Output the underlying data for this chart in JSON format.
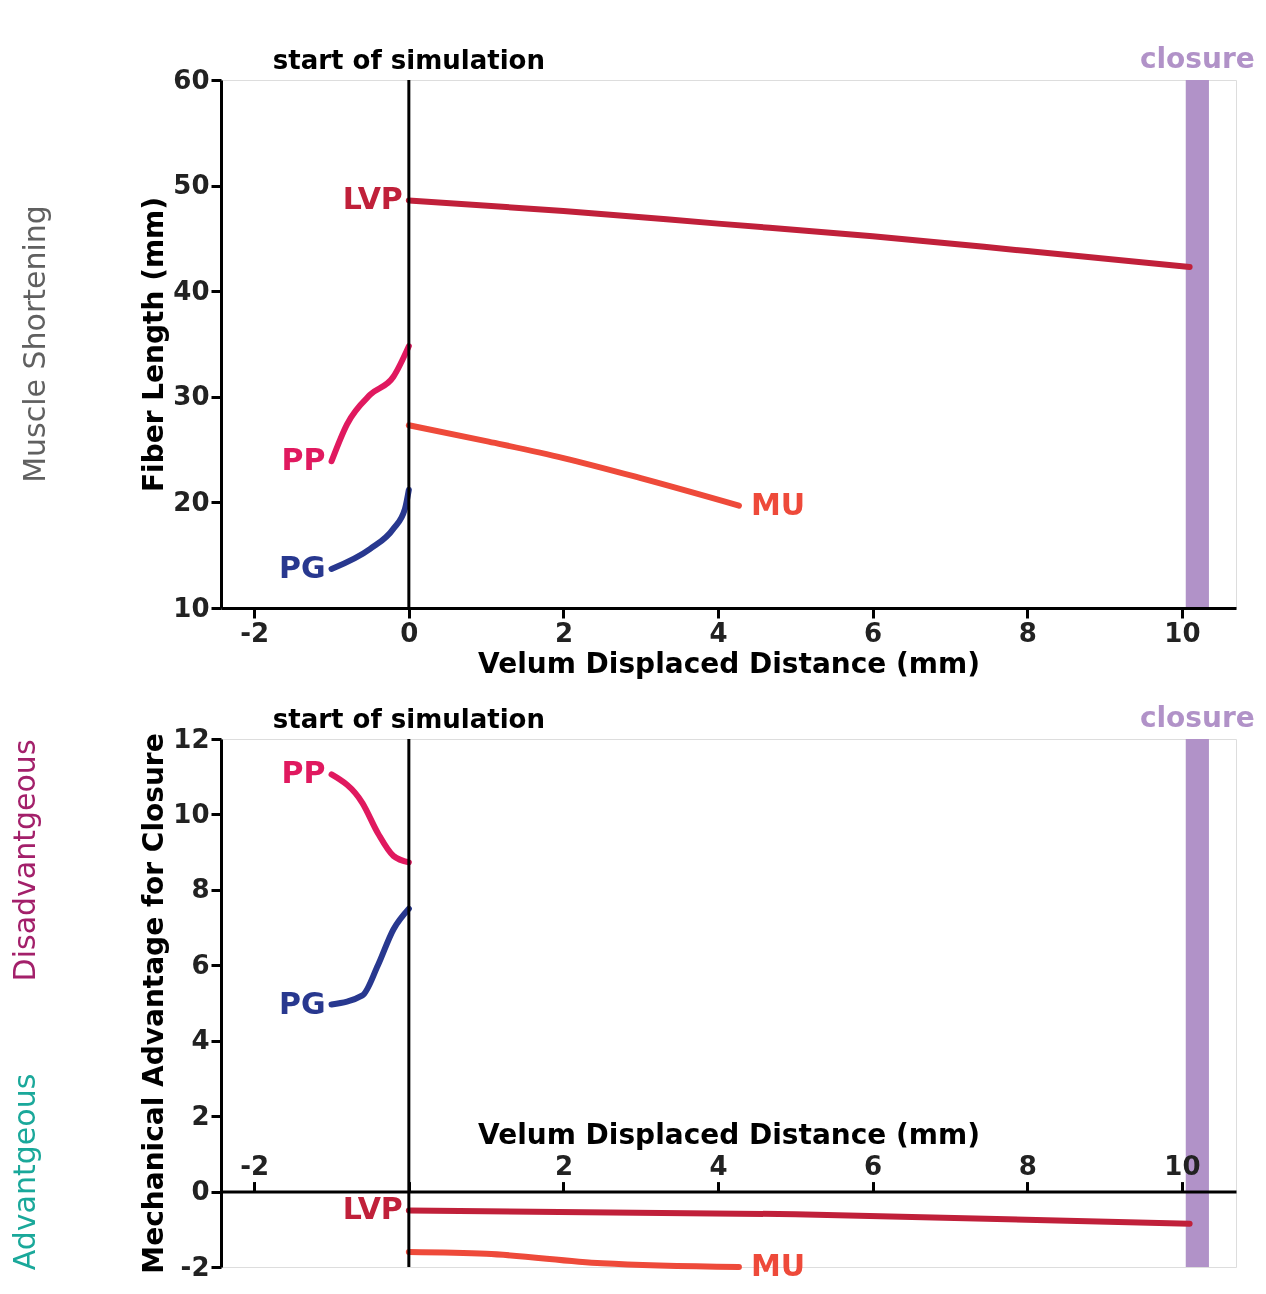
{
  "chart_data": [
    {
      "type": "line",
      "xlabel": "Velum Displaced Distance (mm)",
      "ylabel": "Fiber Length (mm)",
      "xlim": [
        -2.43,
        10.7
      ],
      "ylim": [
        10,
        60
      ],
      "xticks": [
        -2,
        0,
        2,
        4,
        6,
        8,
        10
      ],
      "yticks": [
        10,
        20,
        30,
        40,
        50,
        60
      ],
      "grid": false,
      "legend": false,
      "series": [
        {
          "name": "LVP",
          "color": "#c0203a",
          "x": [
            0,
            2,
            4,
            6,
            8,
            10.1
          ],
          "values": [
            48.6,
            47.6,
            46.4,
            45.2,
            43.8,
            42.3
          ]
        },
        {
          "name": "MU",
          "color": "#ee4a3a",
          "x": [
            0,
            1,
            2,
            3,
            4.27
          ],
          "values": [
            27.3,
            25.8,
            24.2,
            22.3,
            19.7
          ]
        },
        {
          "name": "PP",
          "color": "#e0195f",
          "x": [
            -1,
            -0.8,
            -0.5,
            -0.2,
            0
          ],
          "values": [
            23.9,
            27.4,
            30.2,
            31.9,
            34.8
          ]
        },
        {
          "name": "PG",
          "color": "#28388f",
          "x": [
            -1,
            -0.5,
            -0.2,
            -0.05,
            0
          ],
          "values": [
            13.7,
            15.6,
            17.5,
            19.4,
            21.2
          ]
        }
      ],
      "ref_lines": [
        {
          "axis": "x",
          "value": 0,
          "label": "start of simulation",
          "color": "#000000"
        }
      ],
      "bands": [
        {
          "axis": "x",
          "from": 10.05,
          "to": 10.35,
          "label": "closure",
          "color": "#b192c8"
        }
      ],
      "annotations": [
        "Muscle Shortening"
      ]
    },
    {
      "type": "line",
      "xlabel": "Velum Displaced Distance (mm)",
      "ylabel": "Mechanical Advantage for Closure",
      "xlim": [
        -2.43,
        10.7
      ],
      "ylim": [
        -2,
        12
      ],
      "xticks": [
        -2,
        {
          "value": 0,
          "label": null
        },
        2,
        4,
        6,
        8,
        10
      ],
      "yticks": [
        -2,
        0,
        2,
        4,
        6,
        8,
        10,
        12
      ],
      "grid": false,
      "legend": false,
      "series": [
        {
          "name": "LVP",
          "color": "#c0203a",
          "x": [
            0,
            5,
            10.1
          ],
          "values": [
            -0.5,
            -0.6,
            -0.85
          ]
        },
        {
          "name": "MU",
          "color": "#ee4a3a",
          "x": [
            0,
            1,
            2.5,
            4.27
          ],
          "values": [
            -1.6,
            -1.65,
            -1.9,
            -2.0
          ]
        },
        {
          "name": "PP",
          "color": "#e0195f",
          "x": [
            -1,
            -0.6,
            -0.4,
            -0.2,
            0
          ],
          "values": [
            11.06,
            10.3,
            9.5,
            8.9,
            8.73
          ]
        },
        {
          "name": "PG",
          "color": "#28388f",
          "x": [
            -1,
            -0.6,
            -0.4,
            -0.2,
            0
          ],
          "values": [
            4.96,
            5.2,
            6.0,
            6.95,
            7.5
          ]
        }
      ],
      "ref_lines": [
        {
          "axis": "x",
          "value": 0,
          "label": "start of simulation",
          "color": "#000000"
        }
      ],
      "bands": [
        {
          "axis": "x",
          "from": 10.05,
          "to": 10.35,
          "label": "closure",
          "color": "#b192c8"
        }
      ],
      "annotations": [
        "Disadvantgeous",
        "Advantgeous"
      ]
    }
  ]
}
